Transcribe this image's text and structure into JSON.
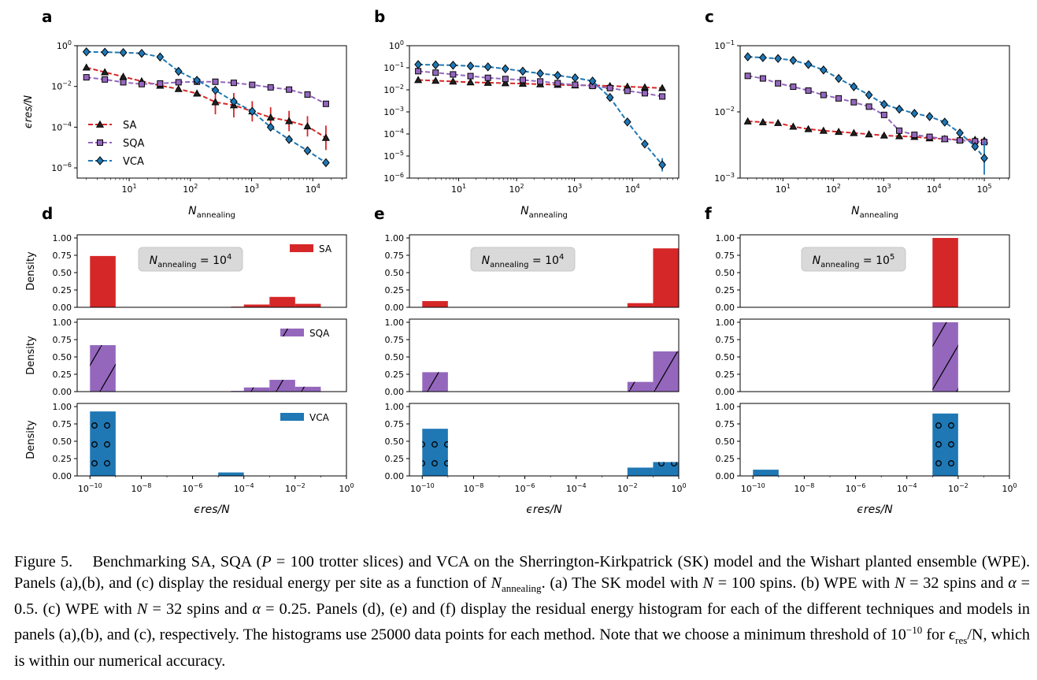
{
  "panels_top": [
    {
      "letter": "a",
      "xlabel": "N",
      "xlabel_sub": "annealing",
      "ylabel": "ϵres/N",
      "xlim_log": [
        0.15,
        4.55
      ],
      "ylim_log": [
        -6.5,
        0
      ],
      "xticks": [
        1,
        2,
        3,
        4
      ],
      "yticks": [
        0,
        -2,
        -4,
        -6
      ],
      "legend": [
        "SA",
        "SQA",
        "VCA"
      ],
      "series": [
        {
          "name": "SA",
          "color": "#d62728",
          "marker": "triangle",
          "x": [
            2,
            4,
            8,
            16,
            32,
            64,
            128,
            256,
            512,
            1024,
            2048,
            4096,
            8192,
            16384
          ],
          "y": [
            0.085,
            0.05,
            0.03,
            0.018,
            0.011,
            0.0075,
            0.0045,
            0.0017,
            0.0012,
            0.0006,
            0.0003,
            0.0002,
            0.00011,
            3e-05
          ],
          "err": [
            0,
            0,
            0,
            0,
            0,
            0,
            0,
            0.6,
            0.6,
            0.5,
            0.5,
            0.5,
            0.5,
            0.6
          ]
        },
        {
          "name": "SQA",
          "color": "#9467bd",
          "marker": "square",
          "x": [
            2,
            4,
            8,
            16,
            32,
            64,
            128,
            256,
            512,
            1024,
            2048,
            4096,
            8192,
            16384
          ],
          "y": [
            0.028,
            0.022,
            0.016,
            0.013,
            0.014,
            0.016,
            0.017,
            0.017,
            0.015,
            0.012,
            0.009,
            0.007,
            0.004,
            0.0014
          ],
          "err": [
            0,
            0,
            0,
            0,
            0,
            0,
            0,
            0,
            0,
            0,
            0,
            0,
            0,
            0
          ]
        },
        {
          "name": "VCA",
          "color": "#1f77b4",
          "marker": "diamond",
          "x": [
            2,
            4,
            8,
            16,
            32,
            64,
            128,
            256,
            512,
            1024,
            2048,
            4096,
            8192,
            16384
          ],
          "y": [
            0.5,
            0.48,
            0.46,
            0.42,
            0.28,
            0.055,
            0.02,
            0.0065,
            0.0018,
            0.0006,
            0.0001,
            2.5e-05,
            7e-06,
            1.8e-06
          ],
          "err": [
            0,
            0,
            0,
            0,
            0,
            0,
            0,
            0,
            0,
            0,
            0,
            0,
            0,
            0
          ]
        }
      ]
    },
    {
      "letter": "b",
      "xlabel": "N",
      "xlabel_sub": "annealing",
      "ylabel": "",
      "xlim_log": [
        0.15,
        4.8
      ],
      "ylim_log": [
        -6,
        0
      ],
      "xticks": [
        1,
        2,
        3,
        4
      ],
      "yticks": [
        0,
        -1,
        -2,
        -3,
        -4,
        -5,
        -6
      ],
      "legend": [],
      "series": [
        {
          "name": "SA",
          "color": "#d62728",
          "marker": "triangle",
          "x": [
            2,
            4,
            8,
            16,
            32,
            64,
            128,
            256,
            512,
            1024,
            2048,
            4096,
            8192,
            16384,
            32768
          ],
          "y": [
            0.028,
            0.026,
            0.024,
            0.022,
            0.021,
            0.02,
            0.019,
            0.018,
            0.017,
            0.016,
            0.016,
            0.015,
            0.014,
            0.013,
            0.012
          ],
          "err": [
            0,
            0,
            0,
            0,
            0,
            0,
            0,
            0,
            0,
            0,
            0,
            0,
            0,
            0,
            0
          ]
        },
        {
          "name": "SQA",
          "color": "#9467bd",
          "marker": "square",
          "x": [
            2,
            4,
            8,
            16,
            32,
            64,
            128,
            256,
            512,
            1024,
            2048,
            4096,
            8192,
            16384,
            32768
          ],
          "y": [
            0.07,
            0.06,
            0.05,
            0.042,
            0.035,
            0.031,
            0.028,
            0.024,
            0.02,
            0.017,
            0.015,
            0.012,
            0.009,
            0.007,
            0.005
          ],
          "err": [
            0,
            0,
            0,
            0,
            0,
            0,
            0,
            0,
            0,
            0,
            0,
            0,
            0,
            0,
            0
          ]
        },
        {
          "name": "VCA",
          "color": "#1f77b4",
          "marker": "diamond",
          "x": [
            2,
            4,
            8,
            16,
            32,
            64,
            128,
            256,
            512,
            1024,
            2048,
            4096,
            8192,
            16384,
            32768
          ],
          "y": [
            0.14,
            0.135,
            0.13,
            0.12,
            0.11,
            0.09,
            0.07,
            0.055,
            0.045,
            0.035,
            0.025,
            0.0045,
            0.00035,
            3.5e-05,
            4e-06
          ],
          "err": [
            0,
            0,
            0,
            0,
            0,
            0,
            0,
            0,
            0,
            0,
            0,
            0,
            0,
            0,
            0.3
          ]
        }
      ]
    },
    {
      "letter": "c",
      "xlabel": "N",
      "xlabel_sub": "annealing",
      "ylabel": "",
      "xlim_log": [
        0.15,
        5.5
      ],
      "ylim_log": [
        -3,
        -1
      ],
      "xticks": [
        1,
        2,
        3,
        4,
        5
      ],
      "yticks": [
        -1,
        -2,
        -3
      ],
      "legend": [],
      "series": [
        {
          "name": "SA",
          "color": "#d62728",
          "marker": "triangle",
          "x": [
            2,
            4,
            8,
            16,
            32,
            64,
            128,
            256,
            512,
            1024,
            2048,
            4096,
            8192,
            16384,
            32768,
            65536,
            100000
          ],
          "y": [
            0.0072,
            0.007,
            0.0068,
            0.006,
            0.0055,
            0.0052,
            0.005,
            0.0048,
            0.0046,
            0.0044,
            0.0043,
            0.0042,
            0.004,
            0.0039,
            0.0038,
            0.0038,
            0.0037
          ],
          "err": [
            0,
            0,
            0,
            0,
            0,
            0,
            0,
            0,
            0,
            0,
            0,
            0,
            0,
            0,
            0,
            0,
            0
          ]
        },
        {
          "name": "SQA",
          "color": "#9467bd",
          "marker": "square",
          "x": [
            2,
            4,
            8,
            16,
            32,
            64,
            128,
            256,
            512,
            1024,
            2048,
            4096,
            8192,
            16384,
            32768,
            65536,
            100000
          ],
          "y": [
            0.035,
            0.032,
            0.027,
            0.024,
            0.021,
            0.018,
            0.016,
            0.014,
            0.012,
            0.009,
            0.0052,
            0.0045,
            0.0042,
            0.0039,
            0.0037,
            0.0036,
            0.0035
          ],
          "err": [
            0,
            0,
            0,
            0,
            0,
            0,
            0,
            0,
            0,
            0,
            0,
            0,
            0,
            0,
            0,
            0,
            0
          ]
        },
        {
          "name": "VCA",
          "color": "#1f77b4",
          "marker": "diamond",
          "x": [
            2,
            4,
            8,
            16,
            32,
            64,
            128,
            256,
            512,
            1024,
            2048,
            4096,
            8192,
            16384,
            32768,
            65536,
            100000
          ],
          "y": [
            0.068,
            0.066,
            0.064,
            0.06,
            0.052,
            0.043,
            0.032,
            0.024,
            0.018,
            0.013,
            0.011,
            0.0095,
            0.0085,
            0.007,
            0.0048,
            0.003,
            0.002
          ],
          "err": [
            0,
            0,
            0,
            0,
            0,
            0,
            0,
            0,
            0,
            0,
            0,
            0,
            0,
            0,
            0,
            0,
            0.25
          ]
        }
      ]
    }
  ],
  "panels_hist": [
    {
      "letter": "d",
      "annotation_base": "N",
      "annotation_sub": "annealing",
      "annotation_exp": "4",
      "xlabel": "ϵres/N",
      "rows": [
        {
          "name": "SA",
          "color": "#d62728",
          "hatch": "none",
          "ylabel": "Density",
          "bars": [
            [
              -10,
              -9,
              0.74
            ],
            [
              -4.5,
              -4,
              0.01
            ],
            [
              -4,
              -3,
              0.04
            ],
            [
              -3,
              -2,
              0.15
            ],
            [
              -2,
              -1,
              0.05
            ]
          ]
        },
        {
          "name": "SQA",
          "color": "#9467bd",
          "hatch": "slash",
          "ylabel": "Density",
          "bars": [
            [
              -10,
              -9,
              0.67
            ],
            [
              -4.5,
              -4,
              0.01
            ],
            [
              -4,
              -3,
              0.06
            ],
            [
              -3,
              -2,
              0.17
            ],
            [
              -2,
              -1,
              0.07
            ]
          ]
        },
        {
          "name": "VCA",
          "color": "#1f77b4",
          "hatch": "circle",
          "ylabel": "Density",
          "bars": [
            [
              -10,
              -9,
              0.93
            ],
            [
              -5,
              -4,
              0.05
            ]
          ]
        }
      ]
    },
    {
      "letter": "e",
      "annotation_base": "N",
      "annotation_sub": "annealing",
      "annotation_exp": "4",
      "xlabel": "ϵres/N",
      "rows": [
        {
          "name": "SA",
          "color": "#d62728",
          "hatch": "none",
          "ylabel": "",
          "bars": [
            [
              -10,
              -9,
              0.09
            ],
            [
              -2,
              -1,
              0.06
            ],
            [
              -1,
              0,
              0.85
            ]
          ]
        },
        {
          "name": "SQA",
          "color": "#9467bd",
          "hatch": "slash",
          "ylabel": "",
          "bars": [
            [
              -10,
              -9,
              0.28
            ],
            [
              -2,
              -1,
              0.14
            ],
            [
              -1,
              0,
              0.58
            ]
          ]
        },
        {
          "name": "VCA",
          "color": "#1f77b4",
          "hatch": "circle",
          "ylabel": "",
          "bars": [
            [
              -10,
              -9,
              0.68
            ],
            [
              -2,
              -1,
              0.12
            ],
            [
              -1,
              0,
              0.2
            ]
          ]
        }
      ]
    },
    {
      "letter": "f",
      "annotation_base": "N",
      "annotation_sub": "annealing",
      "annotation_exp": "5",
      "xlabel": "ϵres/N",
      "rows": [
        {
          "name": "SA",
          "color": "#d62728",
          "hatch": "none",
          "ylabel": "",
          "bars": [
            [
              -3,
              -2,
              1.0
            ]
          ]
        },
        {
          "name": "SQA",
          "color": "#9467bd",
          "hatch": "slash",
          "ylabel": "",
          "bars": [
            [
              -3,
              -2,
              1.0
            ]
          ]
        },
        {
          "name": "VCA",
          "color": "#1f77b4",
          "hatch": "circle",
          "ylabel": "",
          "bars": [
            [
              -10,
              -9,
              0.09
            ],
            [
              -3,
              -2,
              0.9
            ]
          ]
        }
      ]
    }
  ],
  "hist_xticks": [
    -10,
    -8,
    -6,
    -4,
    -2,
    0
  ],
  "hist_yticks": [
    "0.00",
    "0.25",
    "0.50",
    "0.75",
    "1.00"
  ],
  "caption": {
    "fig_label": "Figure 5.",
    "p1": "Benchmarking SA, SQA (",
    "p1_math": "P",
    "p1b": " = 100 trotter slices) and VCA on the Sherrington-Kirkpatrick (SK) model and the Wishart planted ensemble (WPE). Panels (a),(b), and (c) display the residual energy per site as a function of ",
    "p1_N": "N",
    "p1_sub": "annealing",
    "p2": ". (a) The SK model with ",
    "p2_math": "N",
    "p2b": " = 100 spins. (b) WPE with ",
    "p3_math": "N",
    "p3b": " = 32 spins and ",
    "alpha": "α",
    "p3c": " = 0.5. (c) WPE with ",
    "p4_math": "N",
    "p4b": " = 32 spins and ",
    "p4c": " = 0.25. Panels (d), (e) and (f) display the residual energy histogram for each of the different techniques and models in panels (a),(b), and (c), respectively. The histograms use 25000 data points for each method. Note that we choose a minimum threshold of ",
    "thr_base": "10",
    "thr_exp": "−10",
    "p5": " for ",
    "eps": "ϵ",
    "eps_sub": "res",
    "p5b": "/N, which is within our numerical accuracy."
  }
}
